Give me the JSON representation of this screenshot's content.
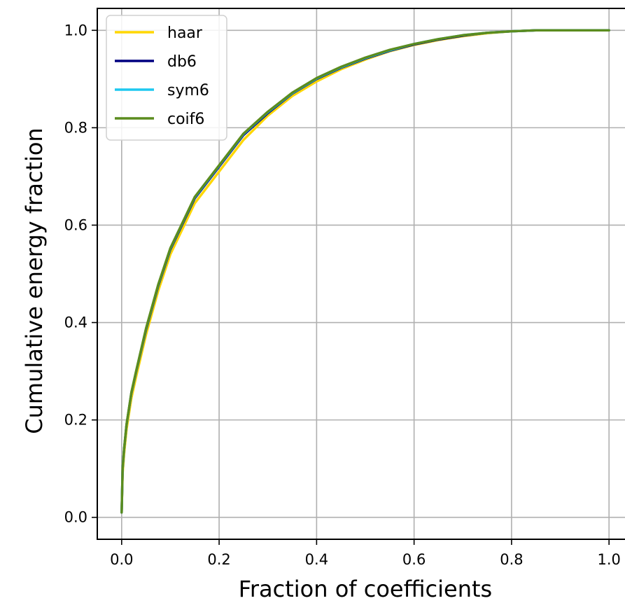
{
  "chart_data": {
    "type": "line",
    "title": "",
    "xlabel": "Fraction of coefficients",
    "ylabel": "Cumulative energy fraction",
    "xlim": [
      -0.05,
      1.05
    ],
    "ylim": [
      -0.045,
      1.045
    ],
    "xticks": [
      0.0,
      0.2,
      0.4,
      0.6,
      0.8,
      1.0
    ],
    "xtick_labels": [
      "0.0",
      "0.2",
      "0.4",
      "0.6",
      "0.8",
      "1.0"
    ],
    "yticks": [
      0.0,
      0.2,
      0.4,
      0.6,
      0.8,
      1.0
    ],
    "ytick_labels": [
      "0.0",
      "0.2",
      "0.4",
      "0.6",
      "0.8",
      "1.0"
    ],
    "grid": true,
    "legend_position": "upper-left",
    "x": [
      0.0,
      0.002,
      0.005,
      0.01,
      0.02,
      0.03,
      0.05,
      0.075,
      0.1,
      0.15,
      0.2,
      0.25,
      0.3,
      0.35,
      0.4,
      0.45,
      0.5,
      0.55,
      0.6,
      0.65,
      0.7,
      0.75,
      0.8,
      0.85,
      0.9,
      0.95,
      1.0
    ],
    "series": [
      {
        "name": "haar",
        "color": "#FFD700",
        "values": [
          0.01,
          0.09,
          0.13,
          0.18,
          0.245,
          0.29,
          0.375,
          0.465,
          0.54,
          0.645,
          0.71,
          0.775,
          0.825,
          0.865,
          0.895,
          0.92,
          0.94,
          0.957,
          0.97,
          0.98,
          0.988,
          0.994,
          0.998,
          1.0,
          1.0,
          1.0,
          1.0
        ]
      },
      {
        "name": "db6",
        "color": "#000080",
        "values": [
          0.01,
          0.1,
          0.14,
          0.19,
          0.255,
          0.3,
          0.385,
          0.475,
          0.55,
          0.655,
          0.72,
          0.785,
          0.83,
          0.87,
          0.9,
          0.923,
          0.942,
          0.958,
          0.971,
          0.981,
          0.989,
          0.995,
          0.998,
          1.0,
          1.0,
          1.0,
          1.0
        ]
      },
      {
        "name": "sym6",
        "color": "#1EC8F0",
        "values": [
          0.01,
          0.1,
          0.14,
          0.19,
          0.256,
          0.301,
          0.387,
          0.477,
          0.552,
          0.657,
          0.722,
          0.787,
          0.832,
          0.871,
          0.901,
          0.924,
          0.943,
          0.959,
          0.972,
          0.982,
          0.99,
          0.995,
          0.998,
          1.0,
          1.0,
          1.0,
          1.0
        ]
      },
      {
        "name": "coif6",
        "color": "#5B8C1E",
        "values": [
          0.01,
          0.1,
          0.141,
          0.191,
          0.257,
          0.302,
          0.388,
          0.478,
          0.553,
          0.658,
          0.723,
          0.788,
          0.833,
          0.872,
          0.902,
          0.925,
          0.944,
          0.96,
          0.972,
          0.982,
          0.99,
          0.995,
          0.998,
          1.0,
          1.0,
          1.0,
          1.0
        ]
      }
    ]
  }
}
